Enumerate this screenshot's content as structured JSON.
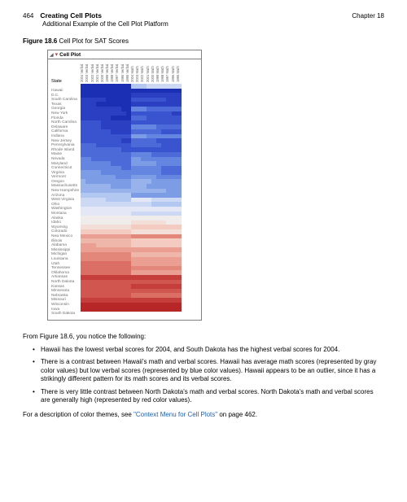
{
  "page": {
    "number": "464",
    "title": "Creating Cell Plots",
    "subtitle": "Additional Example of the Cell Plot Platform",
    "chapter": "Chapter 18"
  },
  "figure": {
    "label": "Figure 18.6",
    "caption": "Cell Plot for SAT Scores",
    "panel_title": "Cell Plot",
    "row_header": "State"
  },
  "columns": [
    "2004 Verbal",
    "2003 Verbal",
    "2002 Verbal",
    "2001 Verbal",
    "2000 Verbal",
    "1999 Verbal",
    "1998 Verbal",
    "1997 Verbal",
    "1996 Verbal",
    "1995 Verbal",
    "2004 Math",
    "2003 Math",
    "2002 Math",
    "2001 Math",
    "2000 Math",
    "1999 Math",
    "1998 Math",
    "1997 Math",
    "1996 Math",
    "1995 Math"
  ],
  "states": [
    "Hawaii",
    "D.C.",
    "South Carolina",
    "Texas",
    "Georgia",
    "New York",
    "Florida",
    "North Carolina",
    "Delaware",
    "California",
    "Indiana",
    "New Jersey",
    "Pennsylvania",
    "Rhode Island",
    "Maine",
    "Nevada",
    "Maryland",
    "Connecticut",
    "Virginia",
    "Vermont",
    "Oregon",
    "Massachusetts",
    "New Hampshire",
    "Arizona",
    "West Virginia",
    "Ohio",
    "Washington",
    "Montana",
    "Alaska",
    "Idaho",
    "Wyoming",
    "Colorado",
    "New Mexico",
    "Illinois",
    "Alabama",
    "Mississippi",
    "Michigan",
    "Louisiana",
    "Utah",
    "Tennessee",
    "Oklahoma",
    "Arkansas",
    "North Dakota",
    "Kansas",
    "Minnesota",
    "Nebraska",
    "Missouri",
    "Wisconsin",
    "Iowa",
    "South Dakota"
  ],
  "colors": {
    "scale": [
      "#1b2fb5",
      "#2a3fc2",
      "#3a54cf",
      "#4c6bd9",
      "#6485e0",
      "#7d9ce6",
      "#98b3eb",
      "#b3c8f0",
      "#cdd9f4",
      "#e3e7f6",
      "#f0eceb",
      "#f4ded8",
      "#f3cbc0",
      "#efb6aa",
      "#ea9f92",
      "#e4877b",
      "#dc6f65",
      "#d25650",
      "#c63e3c",
      "#b82727"
    ]
  },
  "heat_rows": [
    [
      0,
      0,
      0,
      0,
      0,
      0,
      0,
      0,
      0,
      0,
      7,
      7,
      7,
      8,
      8,
      8,
      8,
      8,
      8,
      8
    ],
    [
      0,
      0,
      0,
      0,
      0,
      0,
      0,
      0,
      0,
      0,
      0,
      0,
      0,
      0,
      0,
      0,
      0,
      0,
      0,
      0
    ],
    [
      0,
      0,
      0,
      0,
      0,
      0,
      0,
      0,
      0,
      0,
      1,
      1,
      1,
      1,
      1,
      1,
      1,
      1,
      1,
      1
    ],
    [
      1,
      1,
      1,
      1,
      1,
      0,
      0,
      0,
      0,
      0,
      2,
      2,
      2,
      2,
      2,
      2,
      2,
      1,
      1,
      1
    ],
    [
      1,
      1,
      1,
      0,
      0,
      0,
      0,
      0,
      0,
      0,
      1,
      1,
      1,
      1,
      1,
      1,
      1,
      1,
      1,
      1
    ],
    [
      1,
      1,
      1,
      1,
      1,
      1,
      1,
      1,
      0,
      0,
      4,
      4,
      4,
      3,
      3,
      3,
      3,
      3,
      3,
      3
    ],
    [
      1,
      1,
      1,
      1,
      1,
      1,
      1,
      1,
      1,
      0,
      2,
      2,
      2,
      2,
      2,
      2,
      2,
      2,
      1,
      1
    ],
    [
      1,
      1,
      1,
      1,
      1,
      1,
      0,
      0,
      0,
      0,
      3,
      3,
      3,
      2,
      2,
      2,
      2,
      2,
      2,
      2
    ],
    [
      2,
      2,
      2,
      2,
      1,
      1,
      1,
      1,
      1,
      1,
      2,
      2,
      2,
      2,
      2,
      2,
      2,
      2,
      2,
      2
    ],
    [
      2,
      2,
      2,
      2,
      1,
      1,
      1,
      1,
      1,
      1,
      4,
      4,
      4,
      4,
      4,
      3,
      3,
      3,
      3,
      3
    ],
    [
      2,
      2,
      2,
      2,
      2,
      2,
      1,
      1,
      1,
      1,
      3,
      3,
      3,
      3,
      3,
      3,
      2,
      2,
      2,
      2
    ],
    [
      2,
      2,
      2,
      2,
      2,
      2,
      2,
      2,
      2,
      2,
      5,
      5,
      5,
      4,
      4,
      4,
      4,
      4,
      4,
      4
    ],
    [
      2,
      2,
      2,
      2,
      2,
      2,
      2,
      2,
      1,
      1,
      3,
      3,
      3,
      3,
      3,
      2,
      2,
      2,
      2,
      2
    ],
    [
      3,
      3,
      3,
      2,
      2,
      2,
      2,
      2,
      2,
      2,
      3,
      3,
      3,
      3,
      3,
      3,
      2,
      2,
      2,
      2
    ],
    [
      3,
      3,
      3,
      3,
      3,
      3,
      3,
      3,
      2,
      2,
      2,
      2,
      2,
      2,
      2,
      2,
      2,
      2,
      2,
      2
    ],
    [
      3,
      3,
      3,
      3,
      3,
      3,
      3,
      3,
      3,
      3,
      4,
      4,
      4,
      4,
      3,
      3,
      3,
      3,
      3,
      3
    ],
    [
      4,
      4,
      3,
      3,
      3,
      3,
      3,
      3,
      3,
      3,
      5,
      5,
      4,
      4,
      4,
      4,
      4,
      4,
      4,
      4
    ],
    [
      4,
      4,
      4,
      4,
      4,
      4,
      3,
      3,
      3,
      3,
      5,
      5,
      5,
      5,
      5,
      4,
      4,
      4,
      4,
      4
    ],
    [
      4,
      4,
      4,
      4,
      4,
      4,
      4,
      4,
      3,
      3,
      4,
      4,
      4,
      4,
      4,
      4,
      3,
      3,
      3,
      3
    ],
    [
      5,
      5,
      5,
      5,
      4,
      4,
      4,
      4,
      4,
      4,
      4,
      4,
      4,
      4,
      4,
      4,
      3,
      3,
      3,
      3
    ],
    [
      5,
      5,
      5,
      5,
      5,
      5,
      5,
      4,
      4,
      4,
      5,
      5,
      5,
      5,
      5,
      4,
      4,
      4,
      4,
      4
    ],
    [
      6,
      5,
      5,
      5,
      5,
      5,
      5,
      5,
      5,
      5,
      6,
      6,
      6,
      6,
      5,
      5,
      5,
      5,
      5,
      5
    ],
    [
      6,
      6,
      6,
      6,
      6,
      6,
      5,
      5,
      5,
      5,
      6,
      6,
      6,
      5,
      5,
      5,
      5,
      5,
      5,
      5
    ],
    [
      6,
      6,
      6,
      6,
      6,
      6,
      6,
      6,
      6,
      6,
      6,
      6,
      6,
      6,
      6,
      6,
      6,
      5,
      5,
      5
    ],
    [
      7,
      7,
      7,
      7,
      7,
      7,
      7,
      7,
      7,
      7,
      5,
      5,
      5,
      5,
      5,
      5,
      5,
      5,
      5,
      5
    ],
    [
      8,
      8,
      8,
      8,
      8,
      7,
      7,
      7,
      7,
      7,
      9,
      9,
      9,
      9,
      8,
      8,
      8,
      8,
      8,
      8
    ],
    [
      8,
      8,
      8,
      8,
      8,
      8,
      8,
      8,
      8,
      8,
      8,
      8,
      8,
      8,
      7,
      7,
      7,
      7,
      7,
      7
    ],
    [
      9,
      9,
      9,
      9,
      9,
      9,
      9,
      9,
      9,
      9,
      9,
      9,
      9,
      9,
      9,
      9,
      9,
      9,
      9,
      9
    ],
    [
      9,
      9,
      9,
      9,
      9,
      9,
      9,
      9,
      9,
      9,
      8,
      8,
      8,
      8,
      8,
      8,
      8,
      8,
      8,
      8
    ],
    [
      10,
      10,
      10,
      10,
      10,
      10,
      10,
      10,
      10,
      10,
      10,
      10,
      10,
      10,
      10,
      10,
      10,
      10,
      10,
      10
    ],
    [
      10,
      10,
      10,
      10,
      10,
      10,
      10,
      10,
      10,
      10,
      11,
      11,
      11,
      11,
      11,
      11,
      11,
      10,
      10,
      10
    ],
    [
      11,
      11,
      11,
      11,
      11,
      11,
      11,
      11,
      11,
      11,
      12,
      12,
      12,
      12,
      12,
      12,
      12,
      12,
      12,
      12
    ],
    [
      12,
      12,
      12,
      12,
      12,
      12,
      12,
      12,
      12,
      12,
      11,
      11,
      11,
      11,
      11,
      11,
      11,
      11,
      11,
      11
    ],
    [
      14,
      14,
      14,
      14,
      14,
      14,
      14,
      14,
      14,
      14,
      15,
      15,
      15,
      15,
      15,
      15,
      15,
      15,
      15,
      15
    ],
    [
      13,
      13,
      13,
      13,
      13,
      13,
      13,
      13,
      13,
      13,
      12,
      12,
      12,
      12,
      12,
      12,
      12,
      12,
      12,
      12
    ],
    [
      14,
      14,
      14,
      13,
      13,
      13,
      13,
      13,
      13,
      13,
      12,
      12,
      12,
      12,
      12,
      12,
      12,
      12,
      12,
      12
    ],
    [
      14,
      14,
      14,
      14,
      14,
      14,
      14,
      14,
      14,
      14,
      14,
      14,
      14,
      14,
      14,
      14,
      14,
      14,
      14,
      14
    ],
    [
      15,
      15,
      15,
      15,
      15,
      15,
      15,
      15,
      15,
      15,
      13,
      13,
      13,
      13,
      13,
      13,
      13,
      13,
      13,
      13
    ],
    [
      15,
      15,
      15,
      15,
      15,
      15,
      15,
      15,
      15,
      15,
      14,
      14,
      14,
      14,
      14,
      14,
      14,
      14,
      14,
      14
    ],
    [
      16,
      16,
      16,
      16,
      16,
      16,
      16,
      16,
      16,
      16,
      14,
      14,
      14,
      14,
      14,
      14,
      14,
      14,
      14,
      14
    ],
    [
      16,
      16,
      16,
      16,
      16,
      16,
      16,
      16,
      16,
      16,
      15,
      15,
      15,
      15,
      15,
      15,
      15,
      15,
      15,
      15
    ],
    [
      16,
      16,
      16,
      16,
      16,
      16,
      16,
      16,
      16,
      16,
      14,
      14,
      14,
      14,
      14,
      14,
      14,
      14,
      14,
      14
    ],
    [
      18,
      18,
      18,
      18,
      18,
      18,
      18,
      18,
      18,
      18,
      18,
      18,
      18,
      18,
      18,
      18,
      18,
      18,
      18,
      18
    ],
    [
      17,
      17,
      17,
      17,
      17,
      17,
      17,
      17,
      17,
      17,
      17,
      17,
      17,
      17,
      17,
      17,
      17,
      17,
      17,
      17
    ],
    [
      17,
      17,
      17,
      17,
      17,
      17,
      17,
      17,
      17,
      17,
      18,
      18,
      18,
      18,
      18,
      18,
      18,
      18,
      18,
      18
    ],
    [
      17,
      17,
      17,
      17,
      17,
      17,
      17,
      17,
      17,
      17,
      17,
      17,
      17,
      17,
      17,
      17,
      17,
      17,
      17,
      17
    ],
    [
      17,
      17,
      17,
      17,
      17,
      17,
      17,
      17,
      17,
      17,
      16,
      16,
      16,
      16,
      16,
      16,
      16,
      16,
      16,
      16
    ],
    [
      18,
      18,
      18,
      18,
      18,
      18,
      18,
      18,
      18,
      18,
      18,
      18,
      18,
      18,
      18,
      18,
      18,
      18,
      18,
      18
    ],
    [
      19,
      19,
      19,
      19,
      19,
      19,
      19,
      19,
      19,
      19,
      19,
      19,
      19,
      19,
      19,
      19,
      19,
      19,
      19,
      19
    ],
    [
      19,
      19,
      19,
      19,
      19,
      19,
      19,
      19,
      19,
      19,
      19,
      19,
      19,
      19,
      19,
      19,
      19,
      19,
      19,
      19
    ]
  ],
  "body": {
    "intro": "From Figure 18.6, you notice the following:",
    "b1": "Hawaii has the lowest verbal scores for 2004, and South Dakota has the highest verbal scores for 2004.",
    "b2": "There is a contrast between Hawaii's math and verbal scores. Hawaii has average math scores (represented by gray color values) but low verbal scores (represented by blue color values). Hawaii appears to be an outlier, since it has a strikingly different pattern for its math scores and its verbal scores.",
    "b3": "There is very little contrast between North Dakota's math and verbal scores. North Dakota's math and verbal scores are generally high (represented by red color values).",
    "outro_pre": "For a description of color themes, see ",
    "outro_link": "\"Context Menu for Cell Plots\"",
    "outro_post": " on page 462."
  }
}
